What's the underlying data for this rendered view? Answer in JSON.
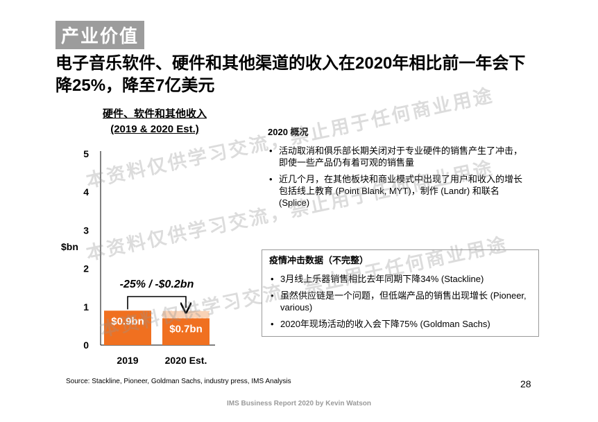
{
  "section_tag": "产业价值",
  "headline": "电子音乐软件、硬件和其他渠道的收入在2020年相比前一年会下降25%，降至7亿美元",
  "chart_title": {
    "line1": "硬件、软件和其他收入",
    "line2": "(2019 & 2020 Est.)"
  },
  "chart_data": {
    "type": "bar",
    "categories": [
      "2019",
      "2020 Est."
    ],
    "values": [
      0.9,
      0.7
    ],
    "data_labels": [
      "$0.9bn",
      "$0.7bn"
    ],
    "ylabel": "$bn",
    "ylim": [
      0,
      5
    ],
    "yticks": [
      "0",
      "1",
      "2",
      "3",
      "4",
      "5"
    ],
    "annotation": "-25% / -$0.2bn",
    "bar_color": "#f07020",
    "ghost_color": "#f9d2b6"
  },
  "overview": {
    "title": "2020 概况",
    "bullets": [
      "活动取消和俱乐部长期关闭对于专业硬件的销售产生了冲击，即使一些产品仍有着可观的销售量",
      "近几个月，在其他板块和商业模式中出现了用户和收入的增长包括线上教育 (Point Blank, MYT)，制作 (Landr) 和联名 (Splice)"
    ]
  },
  "impact": {
    "title": "疫情冲击数据（不完整）",
    "bullets": [
      "3月线上乐器销售相比去年同期下降34% (Stackline)",
      "虽然供应链是一个问题，但低端产品的销售出现增长 (Pioneer, various)",
      "2020年现场活动的收入会下降75% (Goldman Sachs)"
    ]
  },
  "source": "Source: Stackline, Pioneer, Goldman Sachs, industry press, IMS Analysis",
  "page_number": "28",
  "footer": "IMS Business Report 2020 by Kevin Watson",
  "watermark": "本资料仅供学习交流，禁止用于任何商业用途"
}
